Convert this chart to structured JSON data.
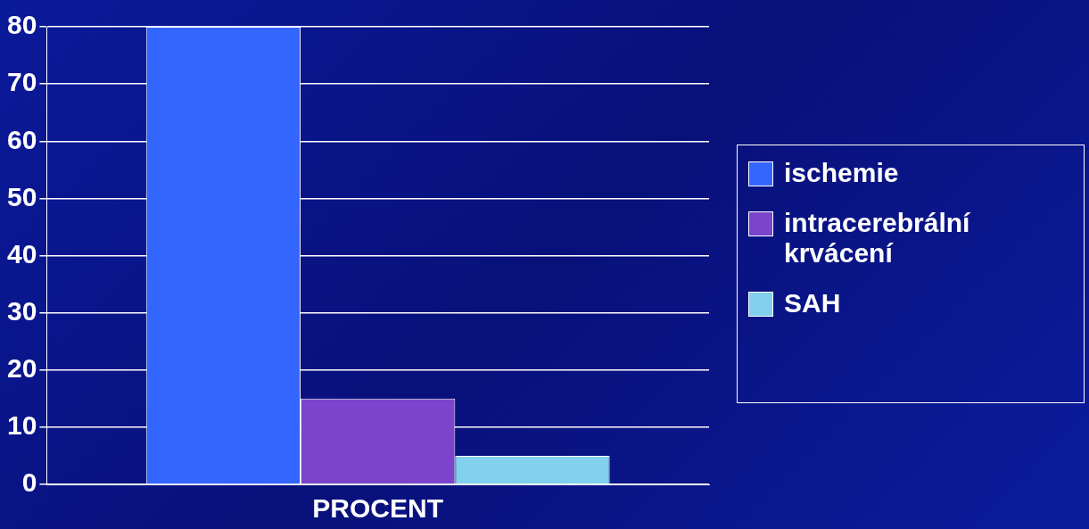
{
  "chart_data": {
    "type": "bar",
    "categories": [
      "PROCENT"
    ],
    "series": [
      {
        "name": "ischemie",
        "color": "#3366ff",
        "values": [
          80
        ]
      },
      {
        "name": "intracerebrální krvácení",
        "color": "#7b44cc",
        "values": [
          15
        ]
      },
      {
        "name": "SAH",
        "color": "#80d0ee",
        "values": [
          5
        ]
      }
    ],
    "ylim": [
      0,
      80
    ],
    "yticks": [
      0,
      10,
      20,
      30,
      40,
      50,
      60,
      70,
      80
    ],
    "grid": "y",
    "legend": "right"
  }
}
